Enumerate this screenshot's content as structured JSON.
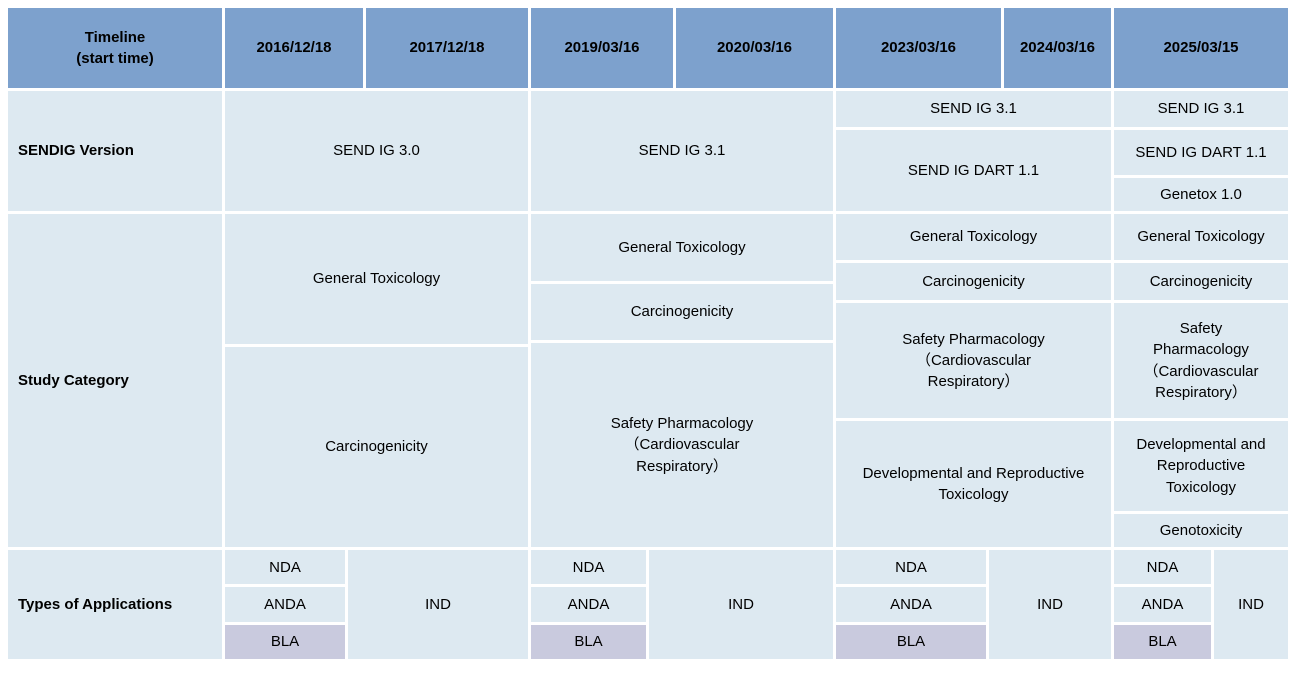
{
  "colors": {
    "header_bg": "#7da1cd",
    "cell_bg": "#dde9f1",
    "bla_bg": "#c9cade",
    "text": "#000000",
    "grid_gap": "#ffffff"
  },
  "header": {
    "title": "Timeline\n(start time)",
    "dates": [
      "2016/12/18",
      "2017/12/18",
      "2019/03/16",
      "2020/03/16",
      "2023/03/16",
      "2024/03/16",
      "2025/03/15"
    ]
  },
  "sendig": {
    "label": "SENDIG Version",
    "g2016_2017": "SEND IG 3.0",
    "g2019_2020": "SEND IG 3.1",
    "g2023_2024": {
      "r1": "SEND IG 3.1",
      "r2": "SEND IG DART 1.1"
    },
    "g2025": {
      "r1": "SEND IG 3.1",
      "r2": "SEND IG DART 1.1",
      "r3": "Genetox 1.0"
    }
  },
  "study": {
    "label": "Study Category",
    "g2016_2017": {
      "r1": "General Toxicology",
      "r2": "Carcinogenicity"
    },
    "g2019_2020": {
      "r1": "General Toxicology",
      "r2": "Carcinogenicity",
      "r3": "Safety Pharmacology\n（Cardiovascular\nRespiratory）"
    },
    "g2023_2024": {
      "r1": "General Toxicology",
      "r2": "Carcinogenicity",
      "r3": "Safety Pharmacology\n（Cardiovascular\nRespiratory）",
      "r4": "Developmental and Reproductive\nToxicology"
    },
    "g2025": {
      "r1": "General Toxicology",
      "r2": "Carcinogenicity",
      "r3": "Safety\nPharmacology\n（Cardiovascular\nRespiratory）",
      "r4": "Developmental and\nReproductive\nToxicology",
      "r5": "Genotoxicity"
    }
  },
  "apps": {
    "label": "Types of Applications",
    "nda": "NDA",
    "anda": "ANDA",
    "bla": "BLA",
    "ind": "IND"
  }
}
